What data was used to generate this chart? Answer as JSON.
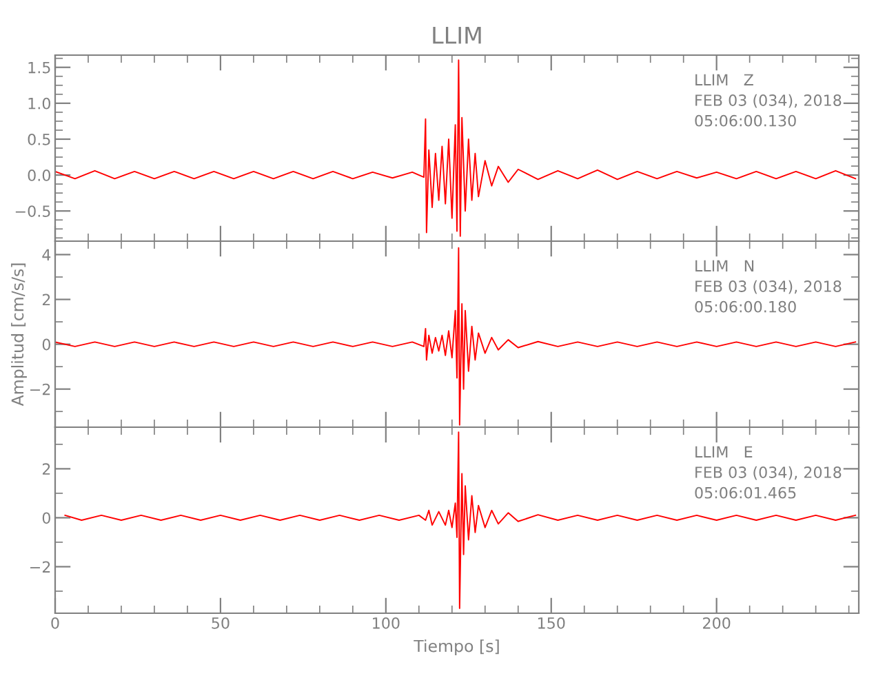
{
  "chart_data": [
    {
      "type": "line",
      "title": "LLIM",
      "xlim": [
        0,
        243
      ],
      "xticks": [
        0,
        50,
        100,
        150,
        200
      ],
      "ylim": [
        -0.92,
        1.67
      ],
      "yticks": [
        {
          "value": -0.5,
          "label": "−0.5"
        },
        {
          "value": 0,
          "label": "0.0"
        },
        {
          "value": 0.5,
          "label": "0.5"
        },
        {
          "value": 1,
          "label": "1.0"
        },
        {
          "value": 1.5,
          "label": "1.5"
        }
      ],
      "tick_labels": "y",
      "grid": false,
      "legend": false,
      "annotations": [
        "LLIM   Z",
        "FEB 03 (034), 2018",
        "05:06:00.130"
      ],
      "series": [
        {
          "color": "#ff0000",
          "x": [
            0,
            6,
            12,
            18,
            24,
            30,
            36,
            42,
            48,
            54,
            60,
            66,
            72,
            78,
            84,
            90,
            96,
            102,
            108,
            111.5,
            112,
            112.3,
            113,
            114,
            115,
            116,
            117,
            118,
            119,
            120,
            121,
            121.5,
            122,
            122.5,
            123,
            124,
            125,
            126,
            127,
            128,
            130,
            132,
            134,
            137,
            140,
            146,
            152,
            158,
            164,
            170,
            176,
            182,
            188,
            194,
            200,
            206,
            212,
            218,
            224,
            230,
            236,
            242
          ],
          "values": [
            0.05,
            -0.05,
            0.06,
            -0.05,
            0.05,
            -0.05,
            0.05,
            -0.05,
            0.05,
            -0.05,
            0.05,
            -0.05,
            0.05,
            -0.05,
            0.05,
            -0.05,
            0.04,
            -0.04,
            0.04,
            -0.03,
            0.78,
            -0.8,
            0.35,
            -0.45,
            0.3,
            -0.35,
            0.4,
            -0.4,
            0.5,
            -0.6,
            0.7,
            -0.78,
            1.6,
            -0.85,
            0.8,
            -0.5,
            0.5,
            -0.35,
            0.3,
            -0.3,
            0.2,
            -0.15,
            0.12,
            -0.1,
            0.08,
            -0.06,
            0.06,
            -0.05,
            0.07,
            -0.06,
            0.05,
            -0.05,
            0.05,
            -0.04,
            0.04,
            -0.05,
            0.05,
            -0.05,
            0.05,
            -0.05,
            0.06,
            -0.05
          ]
        }
      ]
    },
    {
      "type": "line",
      "ylabel": "Amplitud [cm/s/s]",
      "xlim": [
        0,
        243
      ],
      "xticks": [
        0,
        50,
        100,
        150,
        200
      ],
      "ylim": [
        -3.7,
        4.6
      ],
      "yticks": [
        {
          "value": -2,
          "label": "−2"
        },
        0,
        2,
        4
      ],
      "tick_labels": "y",
      "grid": false,
      "legend": false,
      "annotations": [
        "LLIM   N",
        "FEB 03 (034), 2018",
        "05:06:00.180"
      ],
      "series": [
        {
          "color": "#ff0000",
          "x": [
            0,
            6,
            12,
            18,
            24,
            30,
            36,
            42,
            48,
            54,
            60,
            66,
            72,
            78,
            84,
            90,
            96,
            102,
            108,
            111.5,
            112,
            112.3,
            113,
            114,
            115,
            116,
            117,
            118,
            119,
            120,
            121,
            121.5,
            122,
            122.3,
            123,
            123.5,
            124,
            125,
            126,
            127,
            128,
            130,
            132,
            134,
            137,
            140,
            146,
            152,
            158,
            164,
            170,
            176,
            182,
            188,
            194,
            200,
            206,
            212,
            218,
            224,
            230,
            236,
            242
          ],
          "values": [
            0.1,
            -0.1,
            0.1,
            -0.1,
            0.1,
            -0.1,
            0.1,
            -0.1,
            0.1,
            -0.1,
            0.1,
            -0.1,
            0.1,
            -0.1,
            0.1,
            -0.1,
            0.1,
            -0.1,
            0.1,
            -0.1,
            0.7,
            -0.7,
            0.4,
            -0.4,
            0.3,
            -0.3,
            0.4,
            -0.5,
            0.6,
            -0.6,
            1.5,
            -1.5,
            4.3,
            -3.6,
            1.8,
            -2.0,
            1.5,
            -1.2,
            0.8,
            -0.7,
            0.5,
            -0.4,
            0.3,
            -0.25,
            0.2,
            -0.15,
            0.12,
            -0.1,
            0.1,
            -0.1,
            0.1,
            -0.1,
            0.1,
            -0.1,
            0.1,
            -0.1,
            0.1,
            -0.1,
            0.1,
            -0.1,
            0.1,
            -0.1,
            0.1
          ]
        }
      ]
    },
    {
      "type": "line",
      "xlabel": "Tiempo [s]",
      "xlim": [
        0,
        243
      ],
      "xticks": [
        0,
        50,
        100,
        150,
        200
      ],
      "ylim": [
        -3.9,
        3.7
      ],
      "yticks": [
        {
          "value": -2,
          "label": "−2"
        },
        0,
        2
      ],
      "grid": false,
      "legend": false,
      "annotations": [
        "LLIM   E",
        "FEB 03 (034), 2018",
        "05:06:01.465"
      ],
      "series": [
        {
          "color": "#ff0000",
          "x": [
            3,
            8,
            14,
            20,
            26,
            32,
            38,
            44,
            50,
            56,
            62,
            68,
            74,
            80,
            86,
            92,
            98,
            104,
            110,
            112,
            113,
            114,
            116,
            118,
            119,
            120,
            121,
            121.5,
            122,
            122.3,
            123,
            123.5,
            124,
            125,
            126,
            127,
            128,
            130,
            132,
            134,
            137,
            140,
            146,
            152,
            158,
            164,
            170,
            176,
            182,
            188,
            194,
            200,
            206,
            212,
            218,
            224,
            230,
            236,
            242
          ],
          "values": [
            0.1,
            -0.1,
            0.1,
            -0.1,
            0.1,
            -0.1,
            0.1,
            -0.1,
            0.1,
            -0.1,
            0.1,
            -0.1,
            0.1,
            -0.1,
            0.1,
            -0.1,
            0.1,
            -0.1,
            0.1,
            -0.1,
            0.3,
            -0.3,
            0.25,
            -0.3,
            0.3,
            -0.4,
            0.6,
            -0.8,
            3.5,
            -3.7,
            1.8,
            -1.5,
            1.3,
            -0.9,
            0.9,
            -0.6,
            0.5,
            -0.4,
            0.3,
            -0.25,
            0.2,
            -0.15,
            0.12,
            -0.1,
            0.1,
            -0.1,
            0.1,
            -0.1,
            0.1,
            -0.1,
            0.1,
            -0.1,
            0.1,
            -0.1,
            0.1,
            -0.1,
            0.1,
            -0.1,
            0.1
          ]
        }
      ]
    }
  ]
}
